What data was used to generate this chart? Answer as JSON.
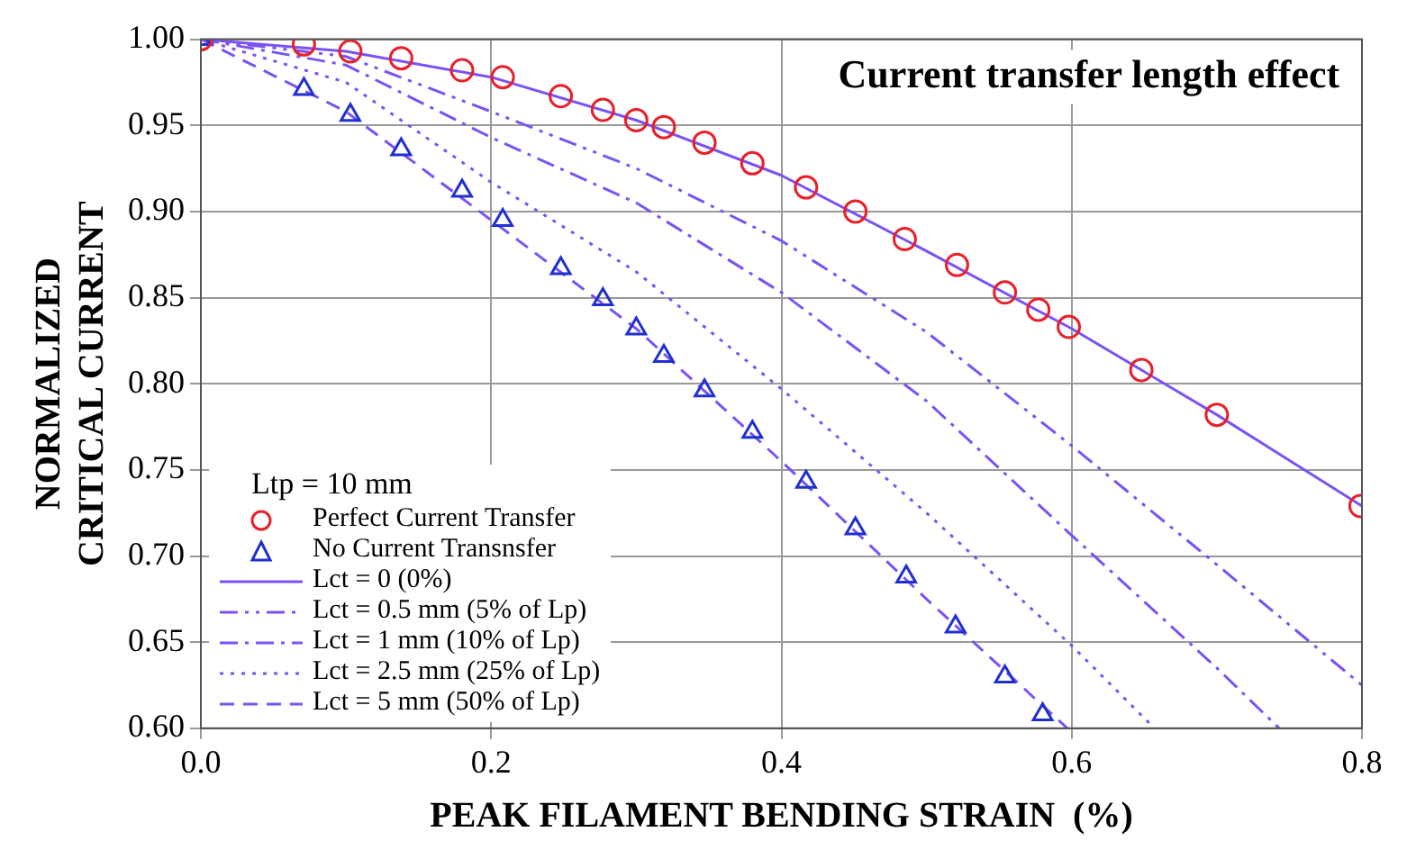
{
  "chart_data": {
    "type": "line",
    "title": "Current transfer length effect",
    "xlabel": "PEAK FILAMENT BENDING STRAIN  (%)",
    "ylabel": "NORMALIZED\nCRITICAL CURRENT",
    "legend_title": "Ltp = 10 mm",
    "legend": "bottom left",
    "grid": true,
    "xlim": [
      0,
      0.8
    ],
    "xticks": [
      {
        "value": 0,
        "label": "0.0"
      },
      0.2,
      0.4,
      0.6,
      0.8
    ],
    "ylim": [
      0.6,
      1.0
    ],
    "yticks": [
      {
        "value": 0.6,
        "label": "0.60"
      },
      0.65,
      {
        "value": 0.7,
        "label": "0.70"
      },
      0.75,
      {
        "value": 0.8,
        "label": "0.80"
      },
      0.85,
      {
        "value": 0.9,
        "label": "0.90"
      },
      0.95,
      {
        "value": 1.0,
        "label": "1.00"
      }
    ],
    "series": [
      {
        "name": "Perfect Current Transfer",
        "type": "scatter",
        "marker": "circle",
        "color": "#e8202a",
        "x": [
          0,
          0.071,
          0.103,
          0.138,
          0.18,
          0.208,
          0.248,
          0.277,
          0.3,
          0.319,
          0.347,
          0.38,
          0.417,
          0.451,
          0.485,
          0.521,
          0.554,
          0.577,
          0.598,
          0.648,
          0.7,
          0.799
        ],
        "values": [
          1,
          0.997,
          0.993,
          0.989,
          0.982,
          0.978,
          0.967,
          0.959,
          0.953,
          0.949,
          0.94,
          0.928,
          0.914,
          0.9,
          0.884,
          0.869,
          0.853,
          0.843,
          0.833,
          0.808,
          0.782,
          0.729
        ]
      },
      {
        "name": "No Current Transnsfer",
        "type": "scatter",
        "marker": "triangle",
        "color": "#2030d0",
        "x": [
          0,
          0.071,
          0.103,
          0.138,
          0.18,
          0.208,
          0.248,
          0.277,
          0.3,
          0.319,
          0.347,
          0.38,
          0.417,
          0.451,
          0.486,
          0.52,
          0.554,
          0.58
        ],
        "values": [
          1,
          0.971,
          0.956,
          0.936,
          0.912,
          0.895,
          0.867,
          0.849,
          0.832,
          0.816,
          0.796,
          0.772,
          0.743,
          0.716,
          0.688,
          0.659,
          0.63,
          0.608
        ]
      },
      {
        "name": "Lct = 0 (0%)",
        "type": "line",
        "marker": "none",
        "line_style": "solid",
        "color": "#7b52f5",
        "x": [
          0,
          0.1,
          0.2,
          0.3,
          0.4,
          0.5,
          0.6,
          0.7,
          0.8
        ],
        "values": [
          1,
          0.993,
          0.978,
          0.953,
          0.921,
          0.877,
          0.832,
          0.782,
          0.729
        ]
      },
      {
        "name": "Lct = 0.5 mm (5% of Lp)",
        "type": "line",
        "marker": "none",
        "line_style": "dashed",
        "color": "#7b52f5",
        "x": [
          0,
          0.1,
          0.2,
          0.3,
          0.4,
          0.5,
          0.6,
          0.7,
          0.8
        ],
        "values": [
          1,
          0.99,
          0.958,
          0.925,
          0.883,
          0.83,
          0.764,
          0.695,
          0.625
        ]
      },
      {
        "name": "Lct = 1 mm (10% of Lp)",
        "type": "line",
        "marker": "none",
        "line_style": "dashed",
        "color": "#7b52f5",
        "x": [
          0,
          0.1,
          0.2,
          0.3,
          0.4,
          0.5,
          0.6,
          0.7,
          0.743
        ],
        "values": [
          1,
          0.985,
          0.943,
          0.905,
          0.853,
          0.79,
          0.712,
          0.635,
          0.6
        ]
      },
      {
        "name": "Lct = 2.5 mm (25% of Lp)",
        "type": "line",
        "marker": "none",
        "line_style": "dotted",
        "color": "#7b52f5",
        "x": [
          0,
          0.1,
          0.2,
          0.3,
          0.4,
          0.5,
          0.6,
          0.657
        ],
        "values": [
          1,
          0.975,
          0.917,
          0.865,
          0.797,
          0.725,
          0.648,
          0.6
        ]
      },
      {
        "name": "Lct = 5 mm (50% of Lp)",
        "type": "line",
        "marker": "none",
        "line_style": "dashed",
        "color": "#7b52f5",
        "x": [
          0,
          0.1,
          0.2,
          0.3,
          0.4,
          0.5,
          0.597
        ],
        "values": [
          1,
          0.958,
          0.895,
          0.832,
          0.755,
          0.675,
          0.6
        ]
      }
    ]
  }
}
